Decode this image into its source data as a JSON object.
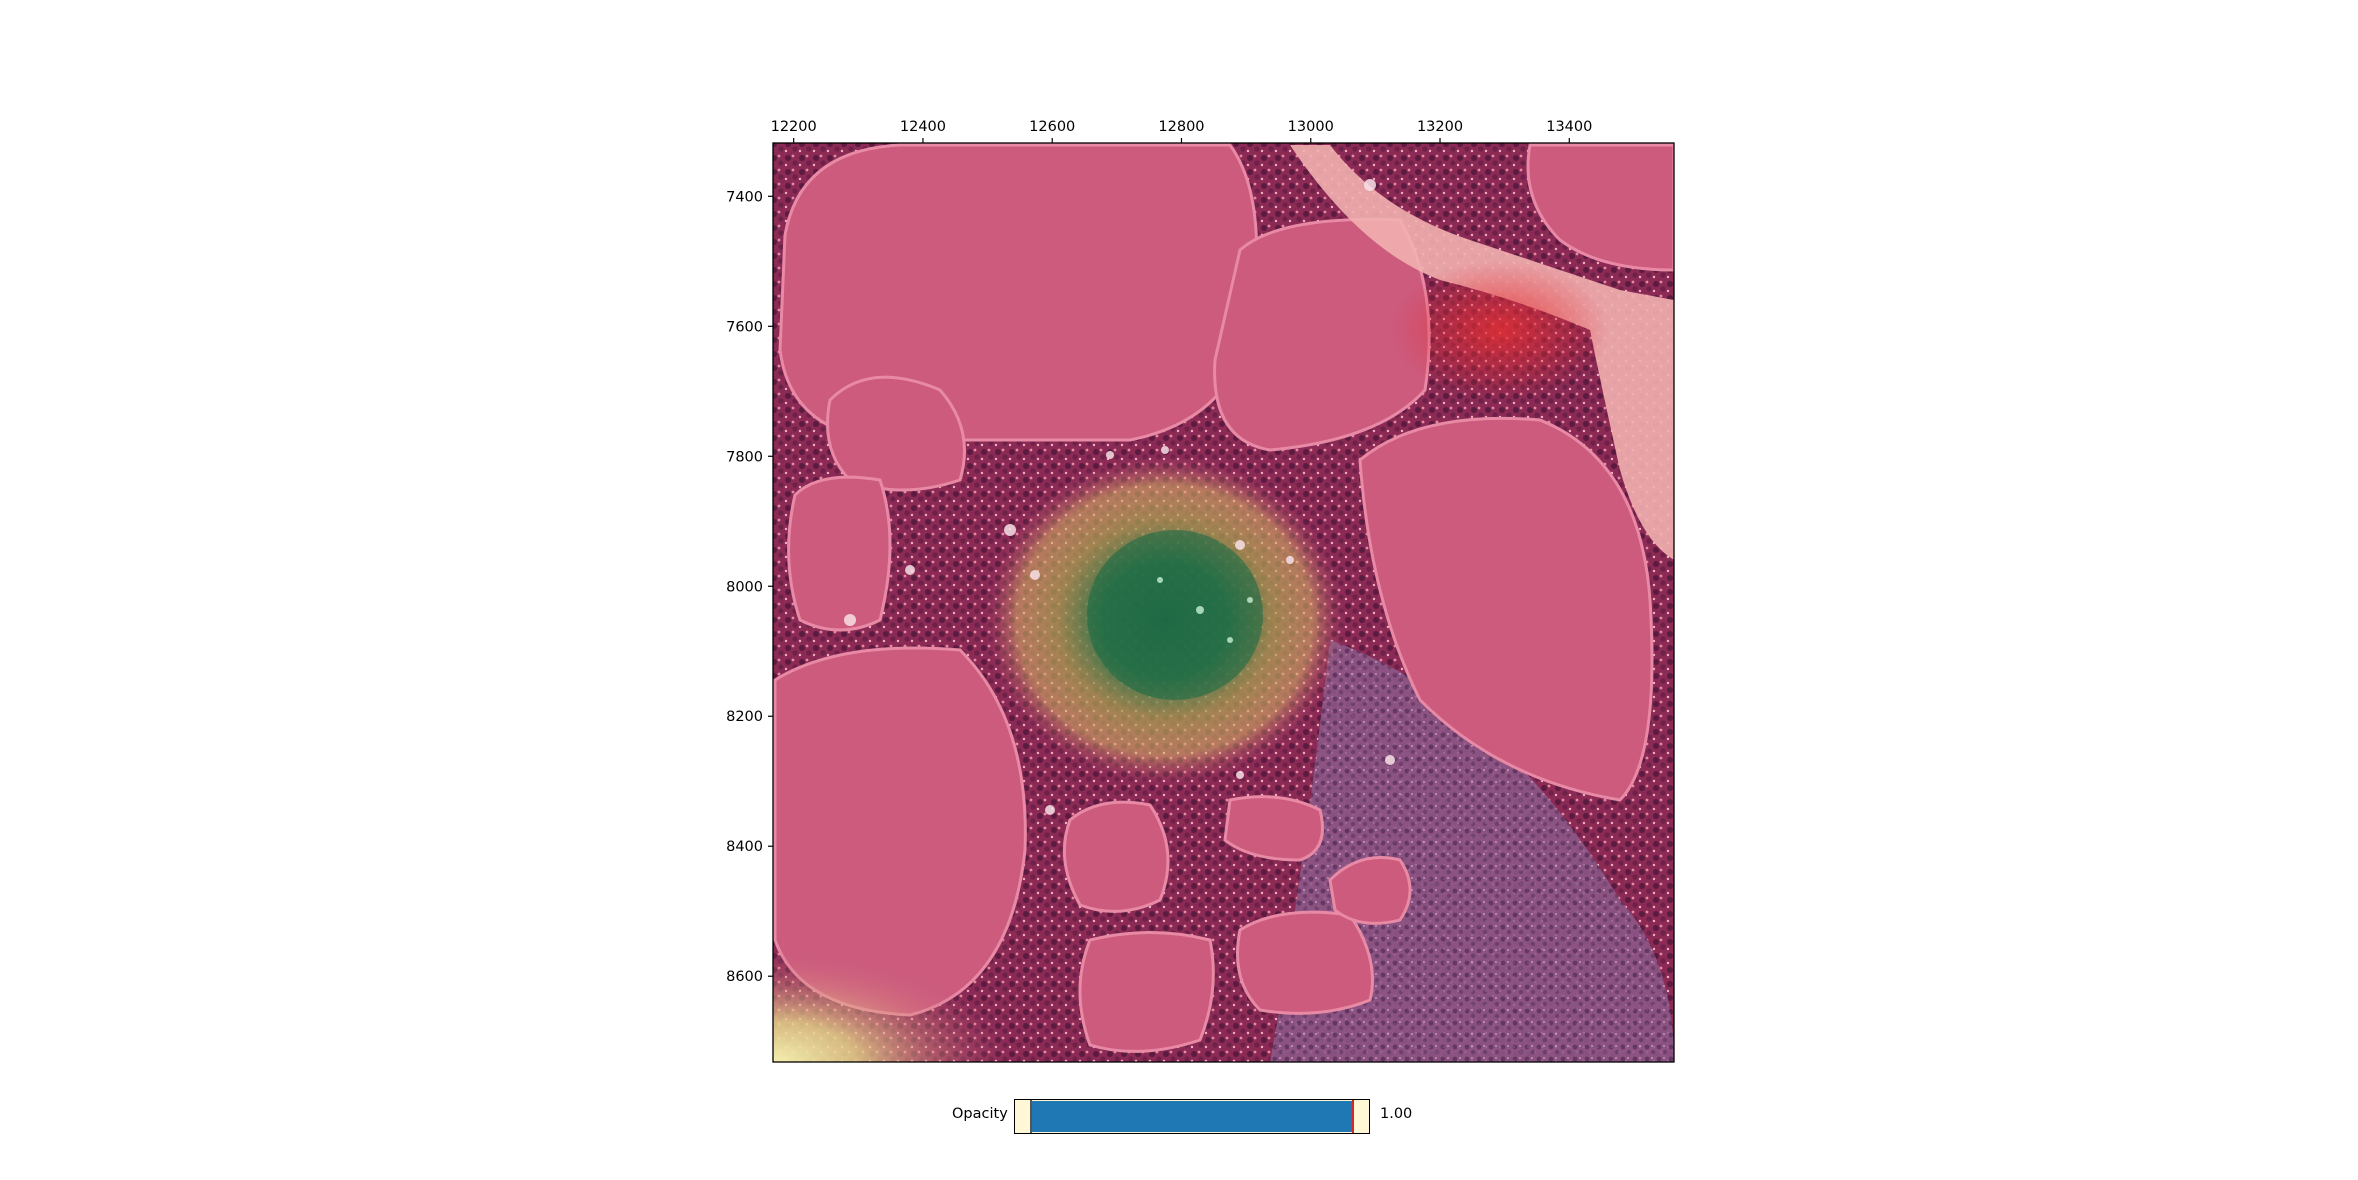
{
  "viewer": {
    "x_ticks": [
      "12200",
      "12400",
      "12600",
      "12800",
      "13000",
      "13200",
      "13400"
    ],
    "y_ticks": [
      "7400",
      "7600",
      "7800",
      "8000",
      "8200",
      "8400",
      "8600"
    ],
    "x_range": [
      12168,
      13562
    ],
    "y_range": [
      7318,
      8732
    ],
    "x_tick_values": [
      12200,
      12400,
      12600,
      12800,
      13000,
      13200,
      13400
    ],
    "y_tick_values": [
      7400,
      7600,
      7800,
      8000,
      8200,
      8400,
      8600
    ]
  },
  "opacity_slider": {
    "label": "Opacity",
    "value": 1.0,
    "value_text": "1.00",
    "track_color": "#fff7d6",
    "fill_color": "#1f77b4",
    "handle_color": "#d62728"
  },
  "colors": {
    "tissue_base": "#c9557a",
    "stroma": "#8a2a55",
    "heat_green": "#2e7d4a",
    "heat_yellow": "#d8b860",
    "heat_red": "#e03a3a",
    "lumen_light": "#f2b0b0"
  }
}
